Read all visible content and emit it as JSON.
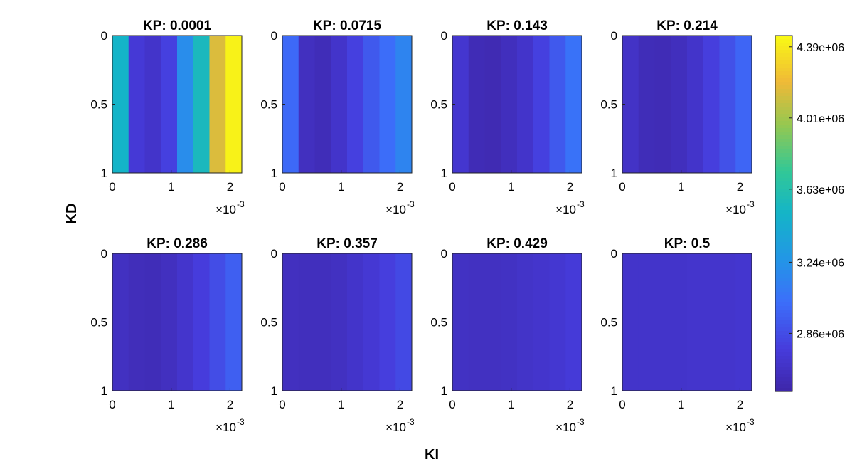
{
  "chart_data": {
    "type": "heatmap",
    "figure": {
      "xlabel": "KI",
      "ylabel": "KD",
      "colormap": "parula",
      "colorbar": {
        "min": 2550000.0,
        "max": 4450000.0,
        "ticks": [
          {
            "value": 4390000.0,
            "label": "4.39e+06"
          },
          {
            "value": 4010000.0,
            "label": "4.01e+06"
          },
          {
            "value": 3630000.0,
            "label": "3.63e+06"
          },
          {
            "value": 3240000.0,
            "label": "3.24e+06"
          },
          {
            "value": 2860000.0,
            "label": "2.86e+06"
          }
        ]
      }
    },
    "subplots": [
      {
        "title": "KP: 0.0001",
        "values": [
          3500000.0,
          2750000.0,
          2700000.0,
          2800000.0,
          3200000.0,
          3550000.0,
          4150000.0,
          4420000.0
        ]
      },
      {
        "title": "KP: 0.0715",
        "values": [
          3000000.0,
          2650000.0,
          2620000.0,
          2700000.0,
          2800000.0,
          2920000.0,
          3020000.0,
          3150000.0
        ]
      },
      {
        "title": "KP: 0.143",
        "values": [
          2720000.0,
          2610000.0,
          2600000.0,
          2640000.0,
          2700000.0,
          2800000.0,
          2920000.0,
          3050000.0
        ]
      },
      {
        "title": "KP: 0.214",
        "values": [
          2680000.0,
          2620000.0,
          2610000.0,
          2640000.0,
          2700000.0,
          2790000.0,
          2880000.0,
          2980000.0
        ]
      },
      {
        "title": "KP: 0.286",
        "values": [
          2660000.0,
          2630000.0,
          2620000.0,
          2650000.0,
          2710000.0,
          2780000.0,
          2860000.0,
          2950000.0
        ]
      },
      {
        "title": "KP: 0.357",
        "values": [
          2650000.0,
          2640000.0,
          2640000.0,
          2660000.0,
          2700000.0,
          2740000.0,
          2790000.0,
          2840000.0
        ]
      },
      {
        "title": "KP: 0.429",
        "values": [
          2670000.0,
          2660000.0,
          2660000.0,
          2670000.0,
          2690000.0,
          2710000.0,
          2730000.0,
          2760000.0
        ]
      },
      {
        "title": "KP: 0.5",
        "values": [
          2700000.0,
          2700000.0,
          2700000.0,
          2700000.0,
          2710000.0,
          2710000.0,
          2710000.0,
          2720000.0
        ]
      }
    ],
    "x_axis": {
      "range": [
        0,
        0.0022
      ],
      "ticks": [
        0,
        0.001,
        0.002
      ],
      "tick_labels": [
        "0",
        "1",
        "2"
      ],
      "exponent_label": "×10",
      "exponent_power": "-3"
    },
    "y_axis": {
      "range": [
        0,
        1
      ],
      "reversed": true,
      "ticks": [
        0,
        0.5,
        1
      ],
      "tick_labels": [
        "0",
        "0.5",
        "1"
      ]
    }
  }
}
